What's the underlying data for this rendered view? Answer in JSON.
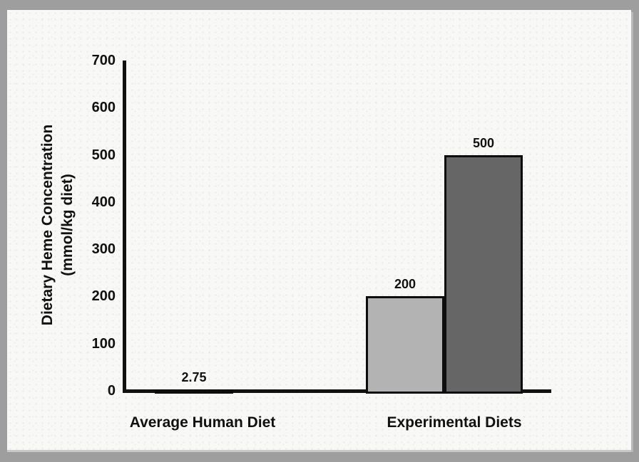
{
  "colors": {
    "frame_background": "#9e9e9e",
    "panel_background": "#f8f8f6",
    "axis_color": "#111111"
  },
  "chart_data": {
    "type": "bar",
    "title": "",
    "xlabel": "",
    "ylabel": "Dietary Heme Concentration (mmol/kg diet)",
    "ylabel_lines": [
      "Dietary Heme Concentration",
      "(mmol/kg diet)"
    ],
    "ylim": [
      0,
      700
    ],
    "yticks": [
      0,
      100,
      200,
      300,
      400,
      500,
      600,
      700
    ],
    "grid": false,
    "legend": false,
    "categories": [
      "Average Human Diet",
      "Experimental Diets"
    ],
    "bars": [
      {
        "category": "Average Human Diet",
        "value": 2.75,
        "label": "2.75",
        "fill": "#000000"
      },
      {
        "category": "Experimental Diets",
        "value": 200,
        "label": "200",
        "fill": "#b3b3b3"
      },
      {
        "category": "Experimental Diets",
        "value": 500,
        "label": "500",
        "fill": "#666666"
      }
    ]
  }
}
